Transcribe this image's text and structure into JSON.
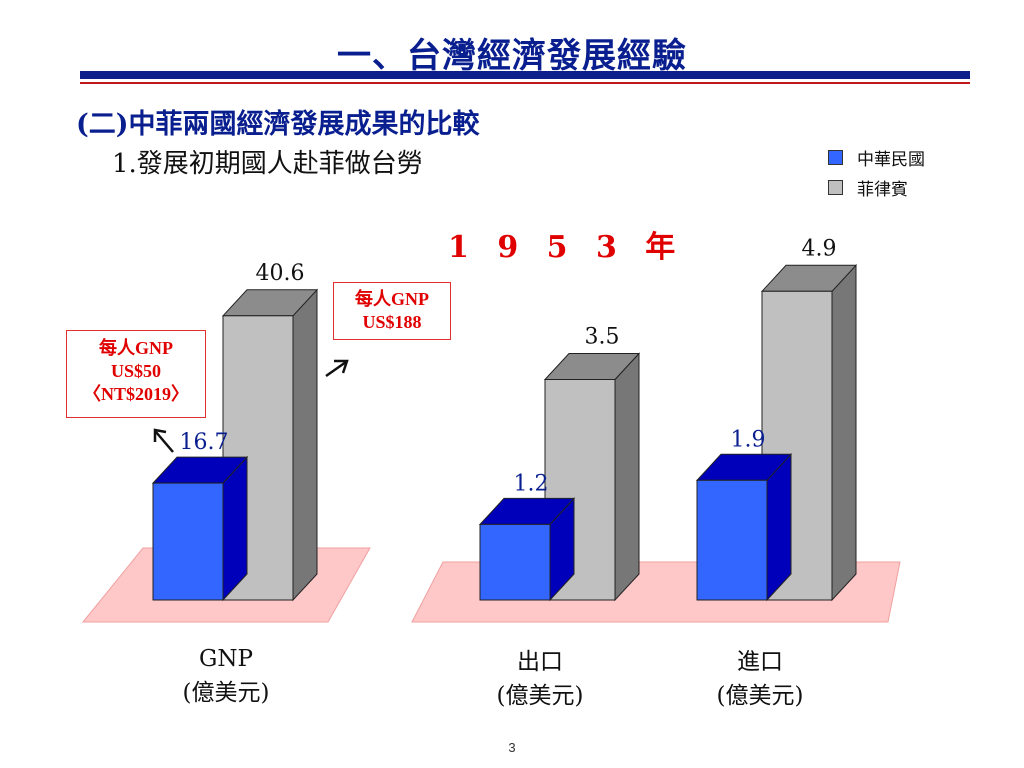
{
  "header": {
    "title": "一、台灣經濟發展經驗",
    "subtitle": "(二)中菲兩國經濟發展成果的比較",
    "subtitle2": "1.發展初期國人赴菲做台勞"
  },
  "annotations": {
    "year": "1 9 5 3 年",
    "callout_left": [
      "每人GNP",
      "US$50",
      "〈NT$2019〉"
    ],
    "callout_right": [
      "每人GNP",
      "US$188"
    ]
  },
  "category_labels": [
    [
      "GNP",
      "(億美元)"
    ],
    [
      "出口",
      "(億美元)"
    ],
    [
      "進口",
      "(億美元)"
    ]
  ],
  "page_number": "3",
  "colors": {
    "title": "#0a1f8f",
    "roc": "#3366ff",
    "phil": "#c0c0c0",
    "callout": "#e00000",
    "floor": "#ffc8c8"
  },
  "chart_data": {
    "type": "bar",
    "categories": [
      "GNP",
      "出口",
      "進口"
    ],
    "series": [
      {
        "name": "中華民國",
        "values": [
          16.7,
          1.2,
          1.9
        ]
      },
      {
        "name": "菲律賓",
        "values": [
          40.6,
          3.5,
          4.9
        ]
      }
    ],
    "legend": [
      "中華民國",
      "菲律賓"
    ],
    "legend_placement": "top-right",
    "grid": false,
    "title": "",
    "xlabel": "",
    "ylabel": ""
  }
}
